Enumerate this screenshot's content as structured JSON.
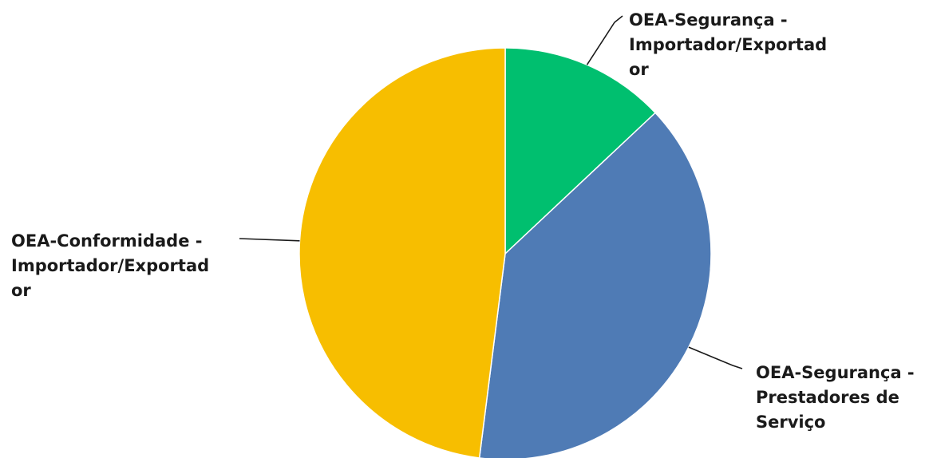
{
  "chart_data": {
    "type": "pie",
    "title": "",
    "slices": [
      {
        "label": "OEA-Segurança - Importador/Exportador",
        "label_lines": [
          "OEA-Segurança -",
          "Importador/Exportad",
          "or"
        ],
        "value": 13,
        "color": "#00BF6F"
      },
      {
        "label": "OEA-Segurança - Prestadores de Serviço",
        "label_lines": [
          "OEA-Segurança -",
          "Prestadores de",
          "Serviço"
        ],
        "value": 39,
        "color": "#4F7BB5"
      },
      {
        "label": "OEA-Conformidade - Importador/Exportador",
        "label_lines": [
          "OEA-Conformidade -",
          "Importador/Exportad",
          "or"
        ],
        "value": 48,
        "color": "#F7BE00"
      }
    ],
    "start_angle_deg": 0,
    "direction": "clockwise",
    "legend": "none",
    "data_labels": "category names outside with leader lines"
  }
}
